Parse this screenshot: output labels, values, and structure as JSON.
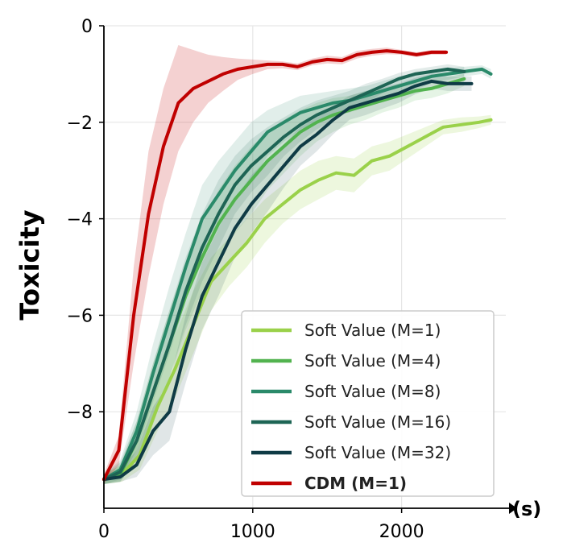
{
  "chart_data": {
    "type": "line",
    "title": "",
    "xlabel": "(s)",
    "ylabel": "Toxicity",
    "xlim": [
      0,
      2700
    ],
    "ylim": [
      -10.0,
      0
    ],
    "xticks": [
      0,
      1000,
      2000
    ],
    "yticks": [
      0,
      -2,
      -4,
      -6,
      -8
    ],
    "xtick_labels": [
      "0",
      "1000",
      "2000"
    ],
    "ytick_labels": [
      "0",
      "−2",
      "−4",
      "−6",
      "−8"
    ],
    "grid": true,
    "legend_position": "lower-right",
    "series": [
      {
        "name": "Soft Value (M=1)",
        "color": "#9ad14a",
        "band_opacity": 0.18,
        "x": [
          0,
          120,
          240,
          360,
          480,
          600,
          720,
          840,
          960,
          1080,
          1200,
          1320,
          1440,
          1560,
          1680,
          1800,
          1920,
          2040,
          2160,
          2280,
          2400,
          2520,
          2600
        ],
        "y": [
          -9.4,
          -9.3,
          -8.9,
          -7.9,
          -7.1,
          -6.2,
          -5.3,
          -4.9,
          -4.5,
          -4.0,
          -3.7,
          -3.4,
          -3.2,
          -3.05,
          -3.1,
          -2.8,
          -2.7,
          -2.5,
          -2.3,
          -2.1,
          -2.05,
          -2.0,
          -1.95
        ],
        "band_upper": [
          -9.3,
          -9.1,
          -8.5,
          -7.3,
          -6.4,
          -5.5,
          -4.8,
          -4.4,
          -4.0,
          -3.6,
          -3.3,
          -3.0,
          -2.8,
          -2.7,
          -2.75,
          -2.5,
          -2.4,
          -2.25,
          -2.1,
          -1.95,
          -1.9,
          -1.88,
          -1.85
        ],
        "band_lower": [
          -9.5,
          -9.45,
          -9.2,
          -8.4,
          -7.7,
          -6.8,
          -5.9,
          -5.4,
          -5.0,
          -4.5,
          -4.1,
          -3.8,
          -3.6,
          -3.4,
          -3.45,
          -3.1,
          -3.0,
          -2.75,
          -2.5,
          -2.25,
          -2.2,
          -2.12,
          -2.05
        ]
      },
      {
        "name": "Soft Value (M=4)",
        "color": "#52b34f",
        "band_opacity": 0.15,
        "x": [
          0,
          110,
          220,
          330,
          440,
          550,
          660,
          770,
          880,
          990,
          1100,
          1210,
          1320,
          1430,
          1540,
          1650,
          1760,
          1870,
          1980,
          2090,
          2200,
          2310,
          2420
        ],
        "y": [
          -9.4,
          -9.3,
          -8.6,
          -7.6,
          -6.6,
          -5.6,
          -4.8,
          -4.1,
          -3.6,
          -3.2,
          -2.8,
          -2.5,
          -2.2,
          -2.0,
          -1.85,
          -1.75,
          -1.65,
          -1.55,
          -1.45,
          -1.35,
          -1.3,
          -1.2,
          -1.1
        ],
        "band_upper": [
          -9.3,
          -9.1,
          -8.2,
          -7.0,
          -5.9,
          -4.9,
          -4.1,
          -3.4,
          -2.9,
          -2.5,
          -2.2,
          -1.95,
          -1.75,
          -1.6,
          -1.5,
          -1.45,
          -1.35,
          -1.3,
          -1.2,
          -1.15,
          -1.1,
          -1.05,
          -1.0
        ],
        "band_lower": [
          -9.5,
          -9.45,
          -9.0,
          -8.2,
          -7.3,
          -6.3,
          -5.5,
          -4.8,
          -4.3,
          -3.9,
          -3.4,
          -3.05,
          -2.7,
          -2.4,
          -2.2,
          -2.05,
          -1.95,
          -1.8,
          -1.7,
          -1.55,
          -1.5,
          -1.4,
          -1.25
        ]
      },
      {
        "name": "Soft Value (M=8)",
        "color": "#2a8a6a",
        "band_opacity": 0.14,
        "x": [
          0,
          110,
          220,
          330,
          440,
          550,
          660,
          770,
          880,
          990,
          1100,
          1210,
          1320,
          1430,
          1540,
          1650,
          1760,
          1870,
          1980,
          2090,
          2200,
          2310,
          2420,
          2540,
          2600
        ],
        "y": [
          -9.4,
          -9.2,
          -8.4,
          -7.2,
          -6.1,
          -5.0,
          -4.0,
          -3.5,
          -3.0,
          -2.6,
          -2.2,
          -2.0,
          -1.8,
          -1.7,
          -1.6,
          -1.55,
          -1.45,
          -1.35,
          -1.25,
          -1.15,
          -1.05,
          -1.0,
          -0.95,
          -0.9,
          -1.0
        ],
        "band_upper": [
          -9.3,
          -9.0,
          -8.0,
          -6.6,
          -5.4,
          -4.3,
          -3.3,
          -2.8,
          -2.4,
          -2.0,
          -1.75,
          -1.6,
          -1.45,
          -1.4,
          -1.35,
          -1.3,
          -1.25,
          -1.15,
          -1.05,
          -0.98,
          -0.92,
          -0.88,
          -0.85,
          -0.82,
          -0.9
        ],
        "band_lower": [
          -9.5,
          -9.4,
          -8.8,
          -7.8,
          -6.8,
          -5.7,
          -4.7,
          -4.2,
          -3.6,
          -3.2,
          -2.7,
          -2.4,
          -2.15,
          -2.0,
          -1.85,
          -1.8,
          -1.65,
          -1.55,
          -1.45,
          -1.32,
          -1.2,
          -1.12,
          -1.05,
          -1.0,
          -1.1
        ]
      },
      {
        "name": "Soft Value (M=16)",
        "color": "#1e6555",
        "band_opacity": 0.13,
        "x": [
          0,
          110,
          220,
          330,
          440,
          550,
          660,
          770,
          880,
          990,
          1100,
          1210,
          1320,
          1430,
          1540,
          1650,
          1760,
          1870,
          1980,
          2090,
          2200,
          2310,
          2420
        ],
        "y": [
          -9.4,
          -9.25,
          -8.6,
          -7.6,
          -6.6,
          -5.5,
          -4.6,
          -3.9,
          -3.3,
          -2.9,
          -2.6,
          -2.3,
          -2.05,
          -1.85,
          -1.7,
          -1.55,
          -1.4,
          -1.25,
          -1.1,
          -1.0,
          -0.95,
          -0.9,
          -0.95
        ],
        "band_upper": [
          -9.3,
          -9.05,
          -8.2,
          -7.0,
          -5.9,
          -4.8,
          -3.9,
          -3.2,
          -2.7,
          -2.35,
          -2.1,
          -1.9,
          -1.7,
          -1.55,
          -1.45,
          -1.35,
          -1.2,
          -1.1,
          -0.98,
          -0.9,
          -0.85,
          -0.8,
          -0.85
        ],
        "band_lower": [
          -9.5,
          -9.45,
          -9.0,
          -8.2,
          -7.3,
          -6.2,
          -5.3,
          -4.6,
          -3.9,
          -3.45,
          -3.1,
          -2.7,
          -2.4,
          -2.15,
          -1.95,
          -1.75,
          -1.6,
          -1.4,
          -1.25,
          -1.12,
          -1.05,
          -1.0,
          -1.05
        ]
      },
      {
        "name": "Soft Value (M=32)",
        "color": "#0f3b45",
        "band_opacity": 0.13,
        "x": [
          0,
          110,
          220,
          330,
          440,
          550,
          660,
          770,
          880,
          990,
          1100,
          1210,
          1320,
          1430,
          1540,
          1650,
          1760,
          1870,
          1980,
          2090,
          2200,
          2310,
          2420,
          2470
        ],
        "y": [
          -9.4,
          -9.35,
          -9.1,
          -8.4,
          -8.0,
          -6.7,
          -5.6,
          -4.9,
          -4.2,
          -3.7,
          -3.3,
          -2.9,
          -2.5,
          -2.25,
          -1.95,
          -1.7,
          -1.6,
          -1.5,
          -1.4,
          -1.25,
          -1.15,
          -1.2,
          -1.2,
          -1.2
        ],
        "band_upper": [
          -9.3,
          -9.2,
          -8.8,
          -7.9,
          -7.4,
          -6.0,
          -4.9,
          -4.2,
          -3.6,
          -3.1,
          -2.75,
          -2.45,
          -2.1,
          -1.9,
          -1.65,
          -1.45,
          -1.35,
          -1.28,
          -1.2,
          -1.08,
          -1.0,
          -1.05,
          -1.05,
          -1.05
        ],
        "band_lower": [
          -9.5,
          -9.45,
          -9.35,
          -8.9,
          -8.6,
          -7.4,
          -6.3,
          -5.6,
          -4.8,
          -4.3,
          -3.85,
          -3.35,
          -2.9,
          -2.6,
          -2.25,
          -1.95,
          -1.85,
          -1.72,
          -1.6,
          -1.42,
          -1.3,
          -1.35,
          -1.35,
          -1.35
        ]
      },
      {
        "name": "CDM (M=1)",
        "color": "#c00000",
        "band_opacity": 0.18,
        "bold_label": true,
        "x": [
          0,
          100,
          200,
          300,
          400,
          500,
          600,
          700,
          800,
          900,
          1000,
          1100,
          1200,
          1300,
          1400,
          1500,
          1600,
          1700,
          1800,
          1900,
          2000,
          2100,
          2200,
          2300
        ],
        "y": [
          -9.4,
          -8.8,
          -6.0,
          -3.9,
          -2.5,
          -1.6,
          -1.3,
          -1.15,
          -1.0,
          -0.9,
          -0.85,
          -0.8,
          -0.8,
          -0.85,
          -0.75,
          -0.7,
          -0.72,
          -0.6,
          -0.55,
          -0.52,
          -0.55,
          -0.6,
          -0.55,
          -0.55
        ],
        "band_upper": [
          -9.3,
          -8.5,
          -5.0,
          -2.6,
          -1.3,
          -0.4,
          -0.5,
          -0.6,
          -0.65,
          -0.68,
          -0.7,
          -0.72,
          -0.74,
          -0.78,
          -0.68,
          -0.62,
          -0.65,
          -0.52,
          -0.48,
          -0.45,
          -0.5,
          -0.55,
          -0.5,
          -0.5
        ],
        "band_lower": [
          -9.5,
          -9.1,
          -7.0,
          -5.2,
          -3.7,
          -2.6,
          -2.0,
          -1.6,
          -1.35,
          -1.12,
          -1.0,
          -0.9,
          -0.88,
          -0.92,
          -0.82,
          -0.78,
          -0.8,
          -0.68,
          -0.62,
          -0.59,
          -0.6,
          -0.65,
          -0.6,
          -0.6
        ]
      }
    ]
  }
}
